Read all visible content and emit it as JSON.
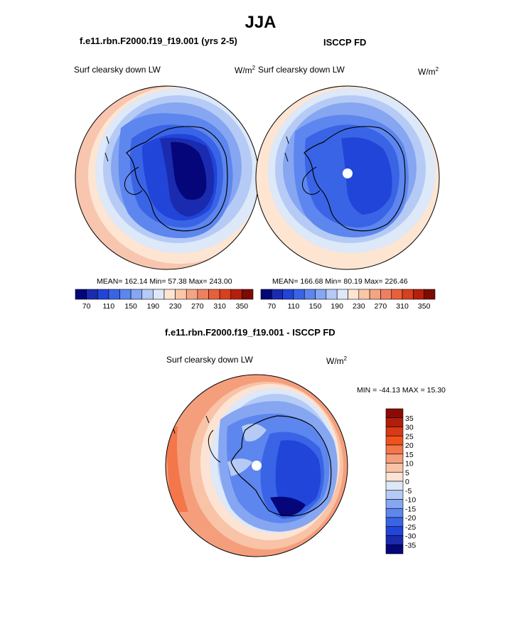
{
  "title": "JJA",
  "panels": {
    "model": {
      "title": "f.e11.rbn.F2000.f19_f19.001 (yrs 2-5)",
      "variable": "Surf clearsky down LW",
      "units_base": "W/m",
      "units_exp": "2",
      "stats": "MEAN= 162.14  Min=  57.38  Max= 243.00"
    },
    "obs": {
      "title": "ISCCP FD",
      "variable": "Surf clearsky down LW",
      "units_base": "W/m",
      "units_exp": "2",
      "stats": "MEAN= 166.68  Min=  80.19  Max= 226.46"
    },
    "diff": {
      "title": "f.e11.rbn.F2000.f19_f19.001 - ISCCP FD",
      "variable": "Surf clearsky down LW",
      "units_base": "W/m",
      "units_exp": "2",
      "stats": "MIN = -44.13 MAX =  15.30"
    }
  },
  "colorbar_abs": {
    "orientation": "horizontal",
    "tick_labels": [
      "70",
      "110",
      "150",
      "190",
      "230",
      "270",
      "310",
      "350"
    ],
    "colors": [
      "#04067a",
      "#1a2bb0",
      "#2145d8",
      "#3a64e6",
      "#5d86ee",
      "#86a6f2",
      "#b5cbf6",
      "#dde8f8",
      "#fde5d2",
      "#f9c7a8",
      "#f3a583",
      "#ee8060",
      "#e8603a",
      "#d8401e",
      "#b51f0b",
      "#7d0a03"
    ]
  },
  "colorbar_diff": {
    "orientation": "vertical",
    "tick_labels": [
      "35",
      "30",
      "25",
      "20",
      "15",
      "10",
      "5",
      "0",
      "-5",
      "-10",
      "-15",
      "-20",
      "-25",
      "-30",
      "-35"
    ],
    "colors": [
      "#8b0a05",
      "#b21e0c",
      "#d83a16",
      "#f0521e",
      "#f3774a",
      "#f59e7c",
      "#f8c3a6",
      "#fde3d3",
      "#dde8f8",
      "#b5cbf6",
      "#86a6f2",
      "#5d86ee",
      "#3a64e6",
      "#2145d8",
      "#1a2bb0",
      "#04067a"
    ]
  }
}
